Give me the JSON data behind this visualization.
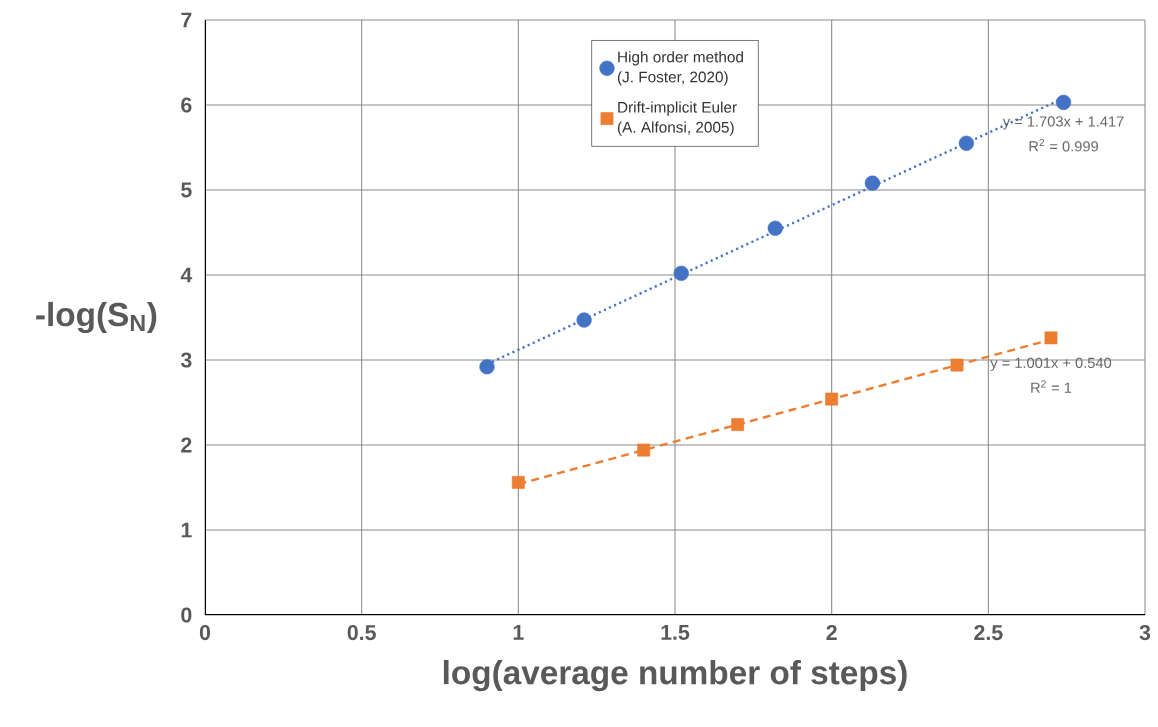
{
  "chart_data": {
    "type": "scatter",
    "xlabel": "log(average number of steps)",
    "ylabel": "-log(S$_{N}$)",
    "xlim": [
      0,
      3
    ],
    "xticks": [
      0,
      0.5,
      1,
      1.5,
      2,
      2.5,
      3
    ],
    "ylim": [
      0,
      7
    ],
    "yticks": [
      0,
      1,
      2,
      3,
      4,
      5,
      6,
      7
    ],
    "grid": true,
    "legend": "top",
    "series": [
      {
        "name": "High order method (J. Foster, 2020)",
        "color": "#4472c4",
        "marker": "circle",
        "x": [
          0.9,
          1.21,
          1.52,
          1.82,
          2.13,
          2.43,
          2.74
        ],
        "values": [
          2.92,
          3.47,
          4.02,
          4.55,
          5.08,
          5.55,
          6.03
        ]
      },
      {
        "name": "Drift-implicit Euler (A. Alfonsi, 2005)",
        "color": "#ed7d31",
        "marker": "square",
        "x": [
          1.0,
          1.4,
          1.7,
          2.0,
          2.4,
          2.7
        ],
        "values": [
          1.56,
          1.94,
          2.24,
          2.54,
          2.94,
          3.26
        ]
      },
      {
        "type": "line",
        "color": "#4472c4",
        "marker": "none",
        "line_style": "dotted",
        "x": [
          0.9,
          2.74
        ],
        "values": [
          2.95,
          6.08
        ]
      },
      {
        "type": "line",
        "color": "#ed7d31",
        "marker": "none",
        "line_style": "dashed",
        "x": [
          1.0,
          2.7
        ],
        "values": [
          1.54,
          3.24
        ]
      }
    ],
    "annotations": [
      "y = 1.703x + 1.417",
      "R$^{2}$ = 0.999",
      "y = 1.001x + 0.540",
      "R$^{2}$ = 1"
    ]
  }
}
